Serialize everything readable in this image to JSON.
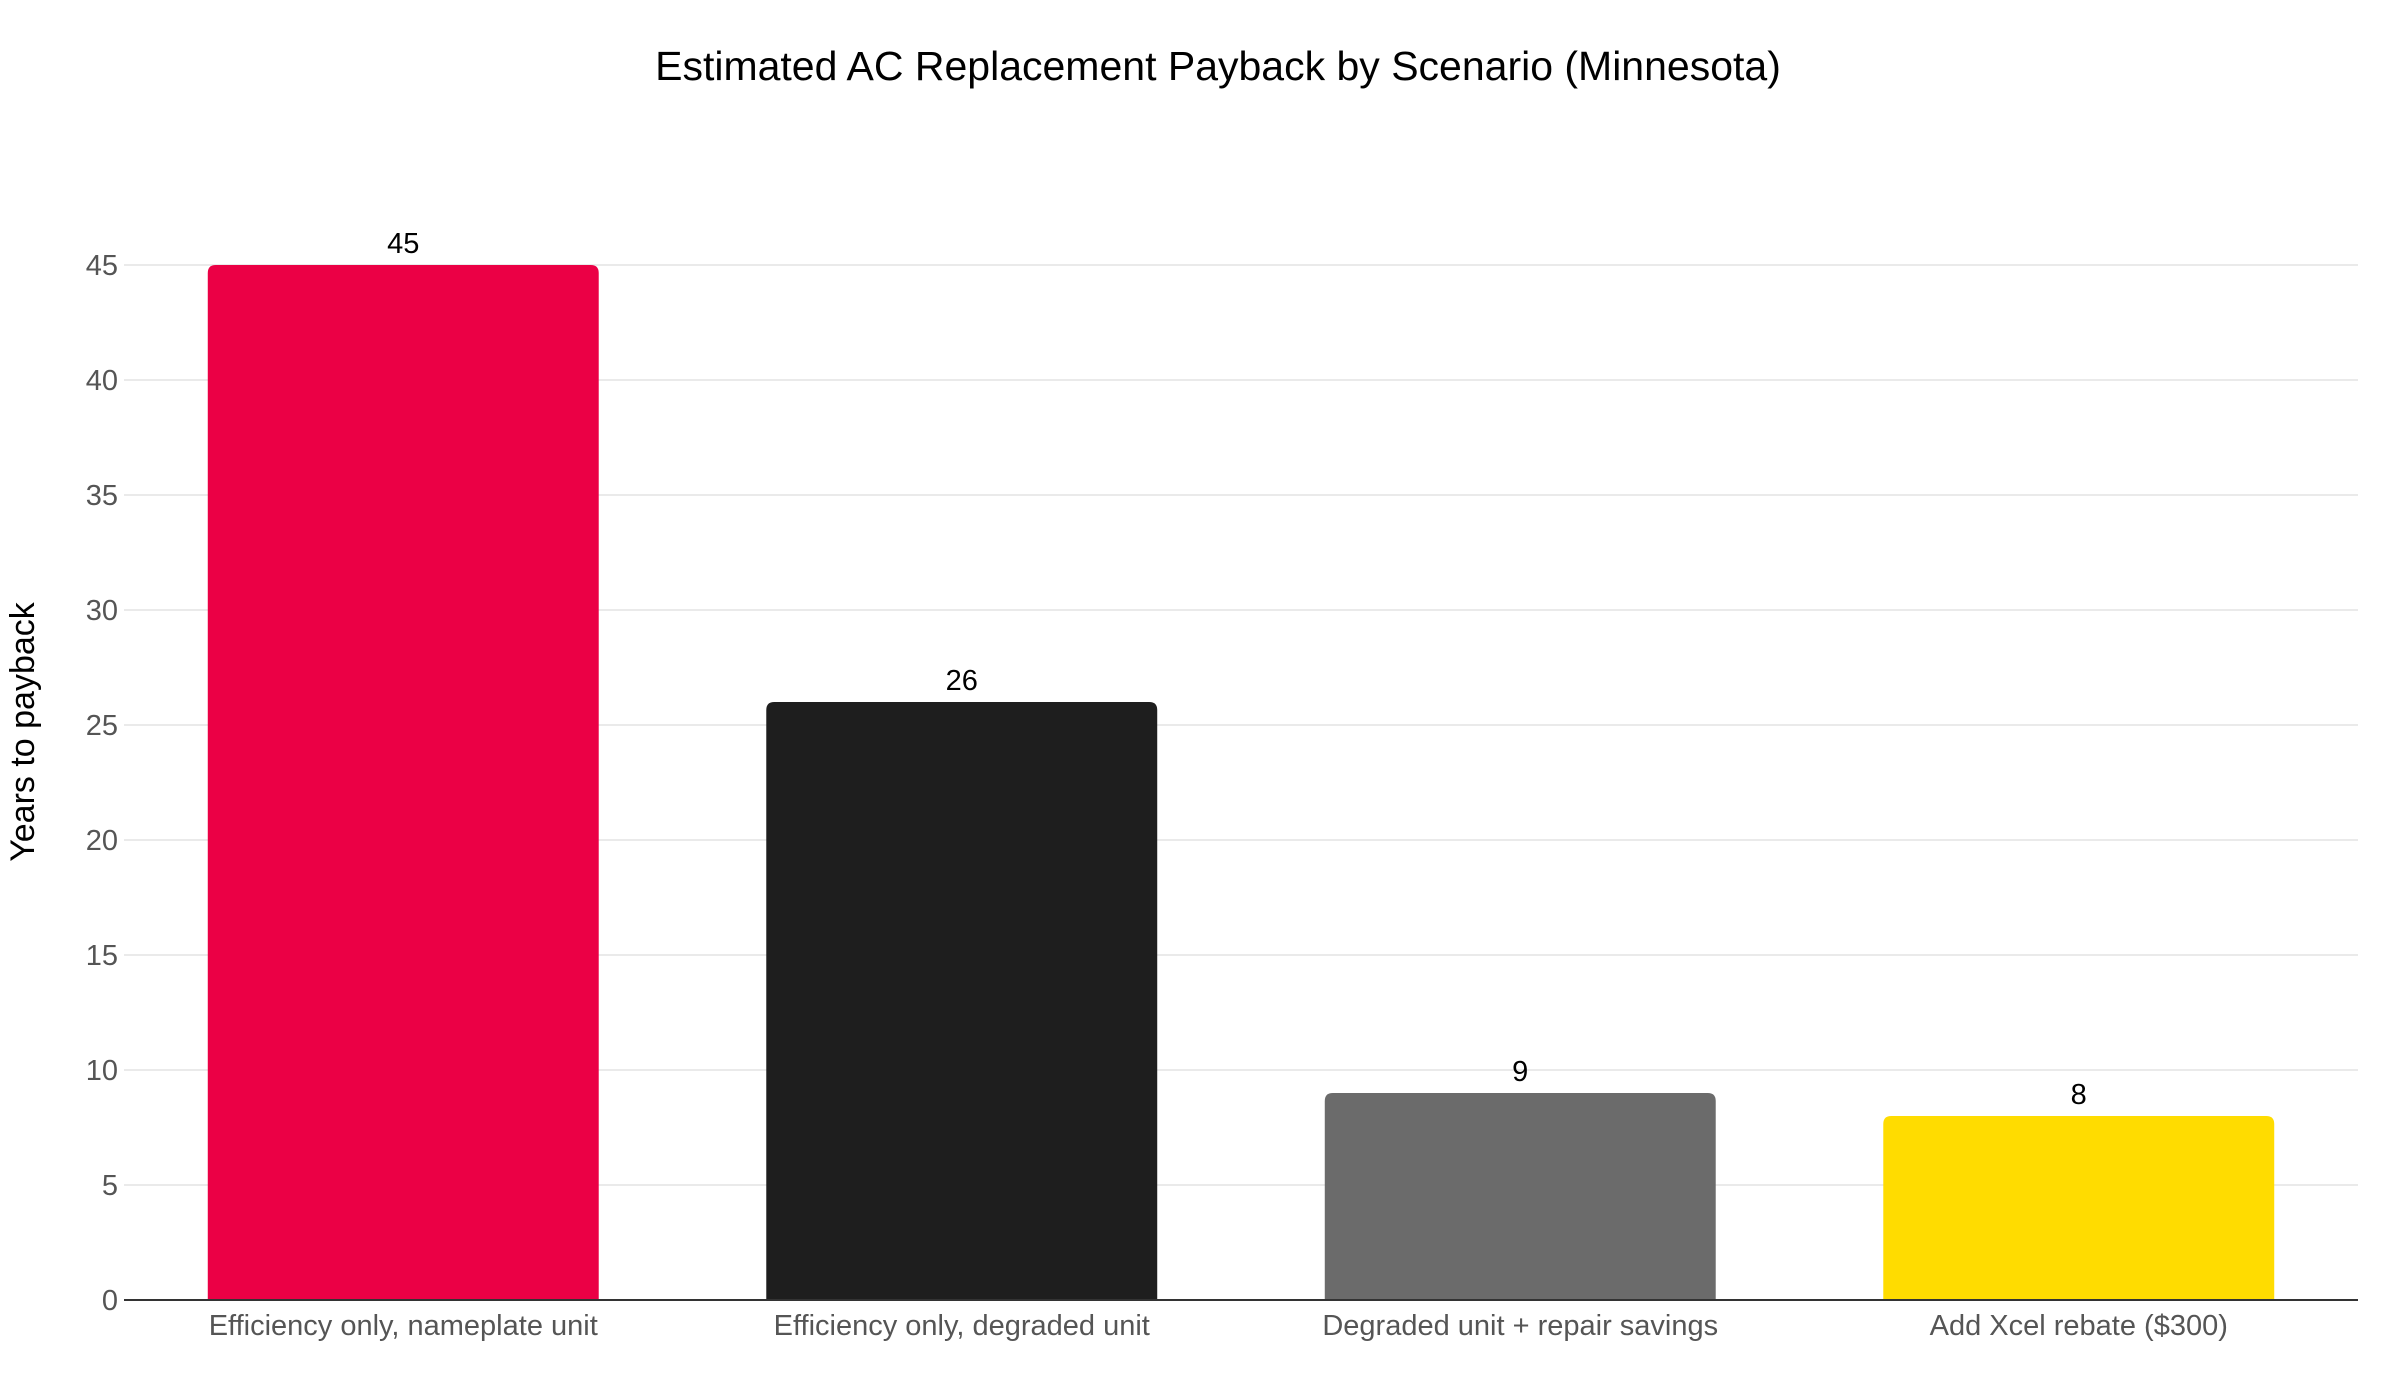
{
  "chart_data": {
    "type": "bar",
    "title": "Estimated AC Replacement Payback by Scenario (Minnesota)",
    "xlabel": "",
    "ylabel": "Years to payback",
    "categories": [
      "Efficiency only, nameplate unit",
      "Efficiency only, degraded unit",
      "Degraded unit + repair savings",
      "Add Xcel rebate ($300)"
    ],
    "values": [
      45,
      26,
      9,
      8
    ],
    "data_labels": [
      "45",
      "26",
      "9",
      "8"
    ],
    "colors": [
      "#EB0045",
      "#1E1E1E",
      "#6B6B6B",
      "#FFDC00"
    ],
    "ylim": [
      0,
      45
    ],
    "yticks": [
      0,
      5,
      10,
      15,
      20,
      25,
      30,
      35,
      40,
      45
    ],
    "grid": true,
    "legend": "none"
  }
}
